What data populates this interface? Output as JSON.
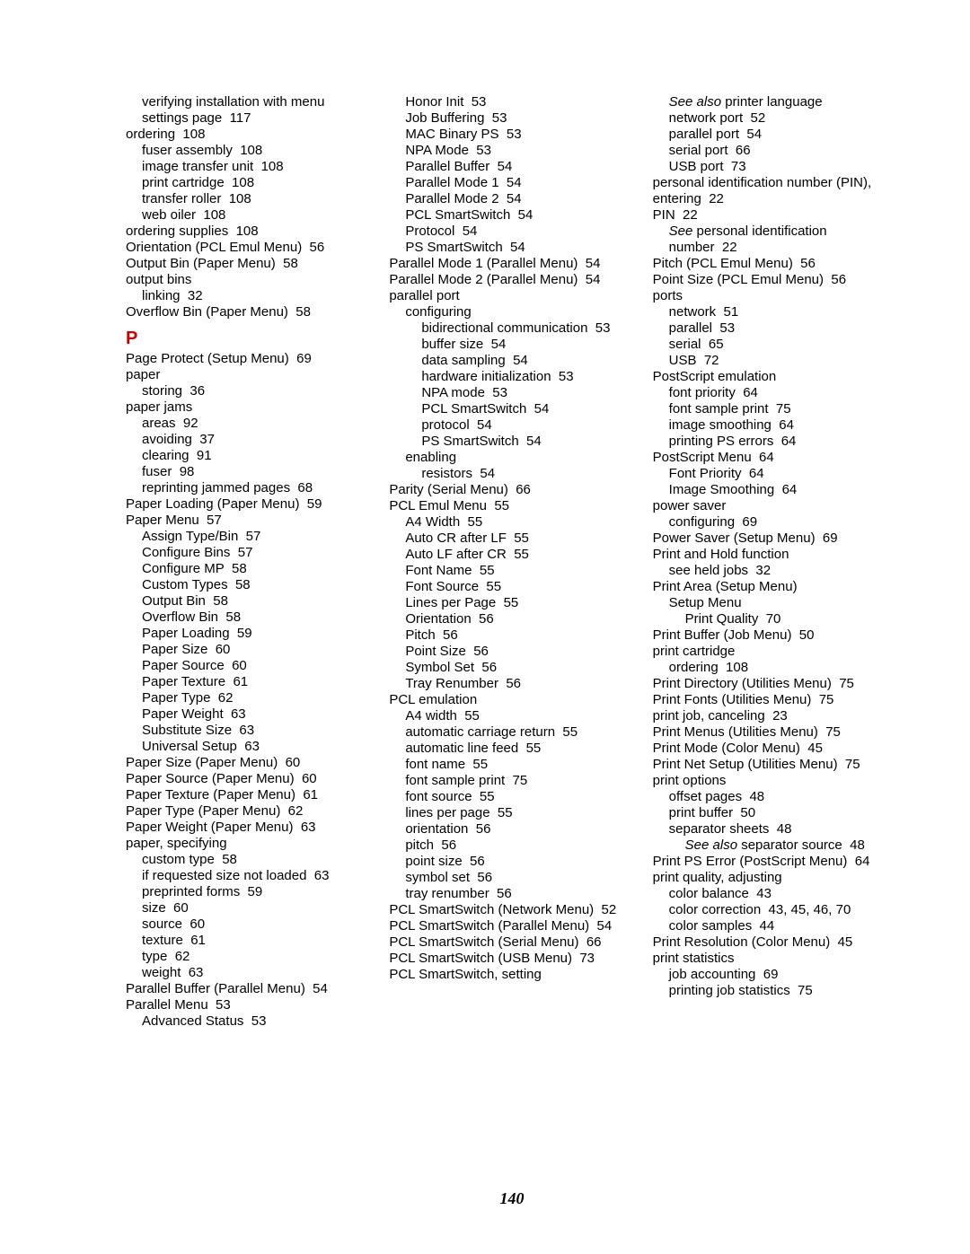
{
  "page_number": "140",
  "letter_heading": "P",
  "columns": [
    [
      {
        "lvl": 1,
        "text": "verifying installation with menu settings page",
        "page": "117"
      },
      {
        "lvl": 0,
        "text": "ordering",
        "page": "108"
      },
      {
        "lvl": 1,
        "text": "fuser assembly",
        "page": "108"
      },
      {
        "lvl": 1,
        "text": "image transfer unit",
        "page": "108"
      },
      {
        "lvl": 1,
        "text": "print cartridge",
        "page": "108"
      },
      {
        "lvl": 1,
        "text": "transfer roller",
        "page": "108"
      },
      {
        "lvl": 1,
        "text": "web oiler",
        "page": "108"
      },
      {
        "lvl": 0,
        "text": "ordering supplies",
        "page": "108"
      },
      {
        "lvl": 0,
        "text": "Orientation (PCL Emul Menu)",
        "page": "56"
      },
      {
        "lvl": 0,
        "text": "Output Bin (Paper Menu)",
        "page": "58"
      },
      {
        "lvl": 0,
        "text": "output bins",
        "page": ""
      },
      {
        "lvl": 1,
        "text": "linking",
        "page": "32"
      },
      {
        "lvl": 0,
        "text": "Overflow Bin (Paper Menu)",
        "page": "58"
      },
      {
        "letter": true
      },
      {
        "lvl": 0,
        "text": "Page Protect (Setup Menu)",
        "page": "69"
      },
      {
        "lvl": 0,
        "text": "paper",
        "page": ""
      },
      {
        "lvl": 1,
        "text": "storing",
        "page": "36"
      },
      {
        "lvl": 0,
        "text": "paper jams",
        "page": ""
      },
      {
        "lvl": 1,
        "text": "areas",
        "page": "92"
      },
      {
        "lvl": 1,
        "text": "avoiding",
        "page": "37"
      },
      {
        "lvl": 1,
        "text": "clearing",
        "page": "91"
      },
      {
        "lvl": 1,
        "text": "fuser",
        "page": "98"
      },
      {
        "lvl": 1,
        "text": "reprinting jammed pages",
        "page": "68"
      },
      {
        "lvl": 0,
        "text": "Paper Loading (Paper Menu)",
        "page": "59"
      },
      {
        "lvl": 0,
        "text": "Paper Menu",
        "page": "57"
      },
      {
        "lvl": 1,
        "text": "Assign Type/Bin",
        "page": "57"
      },
      {
        "lvl": 1,
        "text": "Configure Bins",
        "page": "57"
      },
      {
        "lvl": 1,
        "text": "Configure MP",
        "page": "58"
      },
      {
        "lvl": 1,
        "text": "Custom Types",
        "page": "58"
      },
      {
        "lvl": 1,
        "text": "Output Bin",
        "page": "58"
      },
      {
        "lvl": 1,
        "text": "Overflow Bin",
        "page": "58"
      },
      {
        "lvl": 1,
        "text": "Paper Loading",
        "page": "59"
      },
      {
        "lvl": 1,
        "text": "Paper Size",
        "page": "60"
      },
      {
        "lvl": 1,
        "text": "Paper Source",
        "page": "60"
      },
      {
        "lvl": 1,
        "text": "Paper Texture",
        "page": "61"
      },
      {
        "lvl": 1,
        "text": "Paper Type",
        "page": "62"
      },
      {
        "lvl": 1,
        "text": "Paper Weight",
        "page": "63"
      },
      {
        "lvl": 1,
        "text": "Substitute Size",
        "page": "63"
      },
      {
        "lvl": 1,
        "text": "Universal Setup",
        "page": "63"
      },
      {
        "lvl": 0,
        "text": "Paper Size (Paper Menu)",
        "page": "60"
      },
      {
        "lvl": 0,
        "text": "Paper Source (Paper Menu)",
        "page": "60"
      },
      {
        "lvl": 0,
        "text": "Paper Texture (Paper Menu)",
        "page": "61"
      },
      {
        "lvl": 0,
        "text": "Paper Type (Paper Menu)",
        "page": "62"
      },
      {
        "lvl": 0,
        "text": "Paper Weight (Paper Menu)",
        "page": "63"
      },
      {
        "lvl": 0,
        "text": "paper, specifying",
        "page": ""
      },
      {
        "lvl": 1,
        "text": "custom type",
        "page": "58"
      },
      {
        "lvl": 1,
        "text": "if requested size not loaded",
        "page": "63"
      },
      {
        "lvl": 1,
        "text": "preprinted forms",
        "page": "59"
      },
      {
        "lvl": 1,
        "text": "size",
        "page": "60"
      },
      {
        "lvl": 1,
        "text": "source",
        "page": "60"
      },
      {
        "lvl": 1,
        "text": "texture",
        "page": "61"
      },
      {
        "lvl": 1,
        "text": "type",
        "page": "62"
      },
      {
        "lvl": 1,
        "text": "weight",
        "page": "63"
      },
      {
        "lvl": 0,
        "text": "Parallel Buffer (Parallel Menu)",
        "page": "54"
      },
      {
        "lvl": 0,
        "text": "Parallel Menu",
        "page": "53"
      },
      {
        "lvl": 1,
        "text": "Advanced Status",
        "page": "53"
      }
    ],
    [
      {
        "lvl": 1,
        "text": "Honor Init",
        "page": "53"
      },
      {
        "lvl": 1,
        "text": "Job Buffering",
        "page": "53"
      },
      {
        "lvl": 1,
        "text": "MAC Binary PS",
        "page": "53"
      },
      {
        "lvl": 1,
        "text": "NPA Mode",
        "page": "53"
      },
      {
        "lvl": 1,
        "text": "Parallel Buffer",
        "page": "54"
      },
      {
        "lvl": 1,
        "text": "Parallel Mode 1",
        "page": "54"
      },
      {
        "lvl": 1,
        "text": "Parallel Mode 2",
        "page": "54"
      },
      {
        "lvl": 1,
        "text": "PCL SmartSwitch",
        "page": "54"
      },
      {
        "lvl": 1,
        "text": "Protocol",
        "page": "54"
      },
      {
        "lvl": 1,
        "text": "PS SmartSwitch",
        "page": "54"
      },
      {
        "lvl": 0,
        "text": "Parallel Mode 1 (Parallel Menu)",
        "page": "54"
      },
      {
        "lvl": 0,
        "text": "Parallel Mode 2 (Parallel Menu)",
        "page": "54"
      },
      {
        "lvl": 0,
        "text": "parallel port",
        "page": ""
      },
      {
        "lvl": 1,
        "text": "configuring",
        "page": ""
      },
      {
        "lvl": 2,
        "text": "bidirectional communication",
        "page": "53"
      },
      {
        "lvl": 2,
        "text": "buffer size",
        "page": "54"
      },
      {
        "lvl": 2,
        "text": "data sampling",
        "page": "54"
      },
      {
        "lvl": 2,
        "text": "hardware initialization",
        "page": "53"
      },
      {
        "lvl": 2,
        "text": "NPA mode",
        "page": "53"
      },
      {
        "lvl": 2,
        "text": "PCL SmartSwitch",
        "page": "54"
      },
      {
        "lvl": 2,
        "text": "protocol",
        "page": "54"
      },
      {
        "lvl": 2,
        "text": "PS SmartSwitch",
        "page": "54"
      },
      {
        "lvl": 1,
        "text": "enabling",
        "page": ""
      },
      {
        "lvl": 2,
        "text": "resistors",
        "page": "54"
      },
      {
        "lvl": 0,
        "text": "Parity (Serial Menu)",
        "page": "66"
      },
      {
        "lvl": 0,
        "text": "PCL Emul Menu",
        "page": "55"
      },
      {
        "lvl": 1,
        "text": "A4 Width",
        "page": "55"
      },
      {
        "lvl": 1,
        "text": "Auto CR after LF",
        "page": "55"
      },
      {
        "lvl": 1,
        "text": "Auto LF after CR",
        "page": "55"
      },
      {
        "lvl": 1,
        "text": "Font Name",
        "page": "55"
      },
      {
        "lvl": 1,
        "text": "Font Source",
        "page": "55"
      },
      {
        "lvl": 1,
        "text": "Lines per Page",
        "page": "55"
      },
      {
        "lvl": 1,
        "text": "Orientation",
        "page": "56"
      },
      {
        "lvl": 1,
        "text": "Pitch",
        "page": "56"
      },
      {
        "lvl": 1,
        "text": "Point Size",
        "page": "56"
      },
      {
        "lvl": 1,
        "text": "Symbol Set",
        "page": "56"
      },
      {
        "lvl": 1,
        "text": "Tray Renumber",
        "page": "56"
      },
      {
        "lvl": 0,
        "text": "PCL emulation",
        "page": ""
      },
      {
        "lvl": 1,
        "text": "A4 width",
        "page": "55"
      },
      {
        "lvl": 1,
        "text": "automatic carriage return",
        "page": "55"
      },
      {
        "lvl": 1,
        "text": "automatic line feed",
        "page": "55"
      },
      {
        "lvl": 1,
        "text": "font name",
        "page": "55"
      },
      {
        "lvl": 1,
        "text": "font sample print",
        "page": "75"
      },
      {
        "lvl": 1,
        "text": "font source",
        "page": "55"
      },
      {
        "lvl": 1,
        "text": "lines per page",
        "page": "55"
      },
      {
        "lvl": 1,
        "text": "orientation",
        "page": "56"
      },
      {
        "lvl": 1,
        "text": "pitch",
        "page": "56"
      },
      {
        "lvl": 1,
        "text": "point size",
        "page": "56"
      },
      {
        "lvl": 1,
        "text": "symbol set",
        "page": "56"
      },
      {
        "lvl": 1,
        "text": "tray renumber",
        "page": "56"
      },
      {
        "lvl": 0,
        "text": "PCL SmartSwitch (Network Menu)",
        "page": "52"
      },
      {
        "lvl": 0,
        "text": "PCL SmartSwitch (Parallel Menu)",
        "page": "54"
      },
      {
        "lvl": 0,
        "text": "PCL SmartSwitch (Serial Menu)",
        "page": "66"
      },
      {
        "lvl": 0,
        "text": "PCL SmartSwitch (USB Menu)",
        "page": "73"
      },
      {
        "lvl": 0,
        "text": "PCL SmartSwitch, setting",
        "page": ""
      }
    ],
    [
      {
        "lvl": 1,
        "italic_prefix": "See also",
        "text": " printer language",
        "page": ""
      },
      {
        "lvl": 1,
        "text": "network port",
        "page": "52"
      },
      {
        "lvl": 1,
        "text": "parallel port",
        "page": "54"
      },
      {
        "lvl": 1,
        "text": "serial port",
        "page": "66"
      },
      {
        "lvl": 1,
        "text": "USB port",
        "page": "73"
      },
      {
        "lvl": 0,
        "text": "personal identification number (PIN), entering",
        "page": "22"
      },
      {
        "lvl": 0,
        "text": "PIN",
        "page": "22"
      },
      {
        "lvl": 1,
        "italic_prefix": "See",
        "text": " personal identification number",
        "page": "22"
      },
      {
        "lvl": 0,
        "text": "Pitch (PCL Emul Menu)",
        "page": "56"
      },
      {
        "lvl": 0,
        "text": "Point Size (PCL Emul Menu)",
        "page": "56"
      },
      {
        "lvl": 0,
        "text": "ports",
        "page": ""
      },
      {
        "lvl": 1,
        "text": "network",
        "page": "51"
      },
      {
        "lvl": 1,
        "text": "parallel",
        "page": "53"
      },
      {
        "lvl": 1,
        "text": "serial",
        "page": "65"
      },
      {
        "lvl": 1,
        "text": "USB",
        "page": "72"
      },
      {
        "lvl": 0,
        "text": "PostScript emulation",
        "page": ""
      },
      {
        "lvl": 1,
        "text": "font priority",
        "page": "64"
      },
      {
        "lvl": 1,
        "text": "font sample print",
        "page": "75"
      },
      {
        "lvl": 1,
        "text": "image smoothing",
        "page": "64"
      },
      {
        "lvl": 1,
        "text": "printing PS errors",
        "page": "64"
      },
      {
        "lvl": 0,
        "text": "PostScript Menu",
        "page": "64"
      },
      {
        "lvl": 1,
        "text": "Font Priority",
        "page": "64"
      },
      {
        "lvl": 1,
        "text": "Image Smoothing",
        "page": "64"
      },
      {
        "lvl": 0,
        "text": "power saver",
        "page": ""
      },
      {
        "lvl": 1,
        "text": "configuring",
        "page": "69"
      },
      {
        "lvl": 0,
        "text": "Power Saver (Setup Menu)",
        "page": "69"
      },
      {
        "lvl": 0,
        "text": "Print and Hold function",
        "page": ""
      },
      {
        "lvl": 1,
        "text": "see held jobs",
        "page": "32"
      },
      {
        "lvl": 0,
        "text": "Print Area (Setup Menu)",
        "page": ""
      },
      {
        "lvl": 1,
        "text": "Setup Menu",
        "page": ""
      },
      {
        "lvl": 2,
        "text": "Print Quality",
        "page": "70"
      },
      {
        "lvl": 0,
        "text": "Print Buffer (Job Menu)",
        "page": "50"
      },
      {
        "lvl": 0,
        "text": "print cartridge",
        "page": ""
      },
      {
        "lvl": 1,
        "text": "ordering",
        "page": "108"
      },
      {
        "lvl": 0,
        "text": "Print Directory (Utilities Menu)",
        "page": "75"
      },
      {
        "lvl": 0,
        "text": "Print Fonts (Utilities Menu)",
        "page": "75"
      },
      {
        "lvl": 0,
        "text": "print job, canceling",
        "page": "23"
      },
      {
        "lvl": 0,
        "text": "Print Menus (Utilities Menu)",
        "page": "75"
      },
      {
        "lvl": 0,
        "text": "Print Mode (Color Menu)",
        "page": "45"
      },
      {
        "lvl": 0,
        "text": "Print Net<x> Setup (Utilities Menu)",
        "page": "75"
      },
      {
        "lvl": 0,
        "text": "print options",
        "page": ""
      },
      {
        "lvl": 1,
        "text": "offset pages",
        "page": "48"
      },
      {
        "lvl": 1,
        "text": "print buffer",
        "page": "50"
      },
      {
        "lvl": 1,
        "text": "separator sheets",
        "page": "48"
      },
      {
        "lvl": 2,
        "italic_prefix": "See also",
        "text": " separator source",
        "page": "48"
      },
      {
        "lvl": 0,
        "text": "Print PS Error (PostScript Menu)",
        "page": "64"
      },
      {
        "lvl": 0,
        "text": "print quality, adjusting",
        "page": ""
      },
      {
        "lvl": 1,
        "text": "color balance",
        "page": "43"
      },
      {
        "lvl": 1,
        "text": "color correction",
        "page": "43, 45, 46, 70"
      },
      {
        "lvl": 1,
        "text": "color samples",
        "page": "44"
      },
      {
        "lvl": 0,
        "text": "Print Resolution (Color Menu)",
        "page": "45"
      },
      {
        "lvl": 0,
        "text": "print statistics",
        "page": ""
      },
      {
        "lvl": 1,
        "text": "job accounting",
        "page": "69"
      },
      {
        "lvl": 1,
        "text": "printing job statistics",
        "page": "75"
      }
    ]
  ]
}
